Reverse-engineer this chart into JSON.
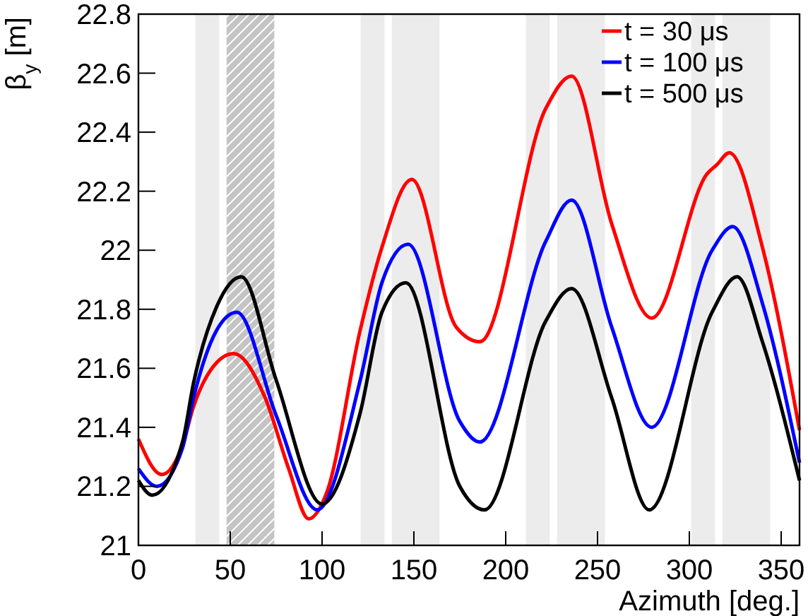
{
  "chart_data": {
    "type": "line",
    "xlabel": "Azimuth [deg.]",
    "ylabel": "β$_{y}$ [m]",
    "xlim": [
      0,
      360
    ],
    "xticks": [
      0,
      50,
      100,
      150,
      200,
      250,
      300,
      350
    ],
    "ylim": [
      21,
      22.8
    ],
    "yticks": [
      21,
      21.2,
      21.4,
      21.6,
      21.8,
      22,
      22.2,
      22.4,
      22.6,
      22.8
    ],
    "legend": "top right",
    "grid": false,
    "line_style": "solid",
    "bands": [
      {
        "axis": "x",
        "from": 31,
        "to": 44,
        "color": "#ececec"
      },
      {
        "axis": "x",
        "from": 48,
        "to": 74,
        "color": "#c4c4c4"
      },
      {
        "axis": "x",
        "from": 121,
        "to": 134,
        "color": "#ececec"
      },
      {
        "axis": "x",
        "from": 138,
        "to": 164,
        "color": "#ececec"
      },
      {
        "axis": "x",
        "from": 211,
        "to": 224,
        "color": "#ececec"
      },
      {
        "axis": "x",
        "from": 228,
        "to": 254,
        "color": "#ececec"
      },
      {
        "axis": "x",
        "from": 301,
        "to": 314,
        "color": "#ececec"
      },
      {
        "axis": "x",
        "from": 318,
        "to": 344,
        "color": "#ececec"
      }
    ],
    "series": [
      {
        "name": "t = 30 μs",
        "color": "#ff0000",
        "x": [
          0,
          12.7,
          24,
          30,
          42.7,
          51.8,
          69,
          81.8,
          92.7,
          102.6,
          120.8,
          132.6,
          148.9,
          173,
          185.9,
          221.8,
          235.9,
          257.7,
          279.5,
          309.8,
          315,
          321.8,
          339.8,
          360
        ],
        "values": [
          21.36,
          21.24,
          21.34,
          21.47,
          21.62,
          21.65,
          21.5,
          21.26,
          21.09,
          21.18,
          21.73,
          22.01,
          22.24,
          21.74,
          21.69,
          22.48,
          22.59,
          22.09,
          21.77,
          22.26,
          22.29,
          22.33,
          22.01,
          21.39
        ]
      },
      {
        "name": "t = 100 μs",
        "color": "#0000ff",
        "x": [
          0,
          10,
          24,
          30,
          42.7,
          53.6,
          75,
          97.4,
          120.8,
          132.6,
          146.9,
          175,
          185.9,
          221.8,
          235.9,
          257.7,
          279.5,
          312.4,
          323.6,
          339.8,
          360
        ],
        "values": [
          21.26,
          21.2,
          21.33,
          21.5,
          21.73,
          21.79,
          21.44,
          21.12,
          21.56,
          21.89,
          22.02,
          21.42,
          21.35,
          22.03,
          22.17,
          21.74,
          21.4,
          22,
          22.08,
          21.82,
          21.28
        ]
      },
      {
        "name": "t = 500 μs",
        "color": "#000000",
        "x": [
          0,
          7.5,
          24,
          30,
          42.7,
          56,
          75,
          100,
          120.8,
          132.6,
          145.6,
          175,
          188.5,
          221.8,
          235.9,
          257.7,
          278.2,
          312.4,
          326,
          339.8,
          360
        ],
        "values": [
          21.22,
          21.17,
          21.35,
          21.55,
          21.81,
          21.91,
          21.56,
          21.14,
          21.45,
          21.79,
          21.89,
          21.2,
          21.12,
          21.76,
          21.87,
          21.5,
          21.12,
          21.79,
          21.91,
          21.69,
          21.22
        ]
      }
    ]
  }
}
